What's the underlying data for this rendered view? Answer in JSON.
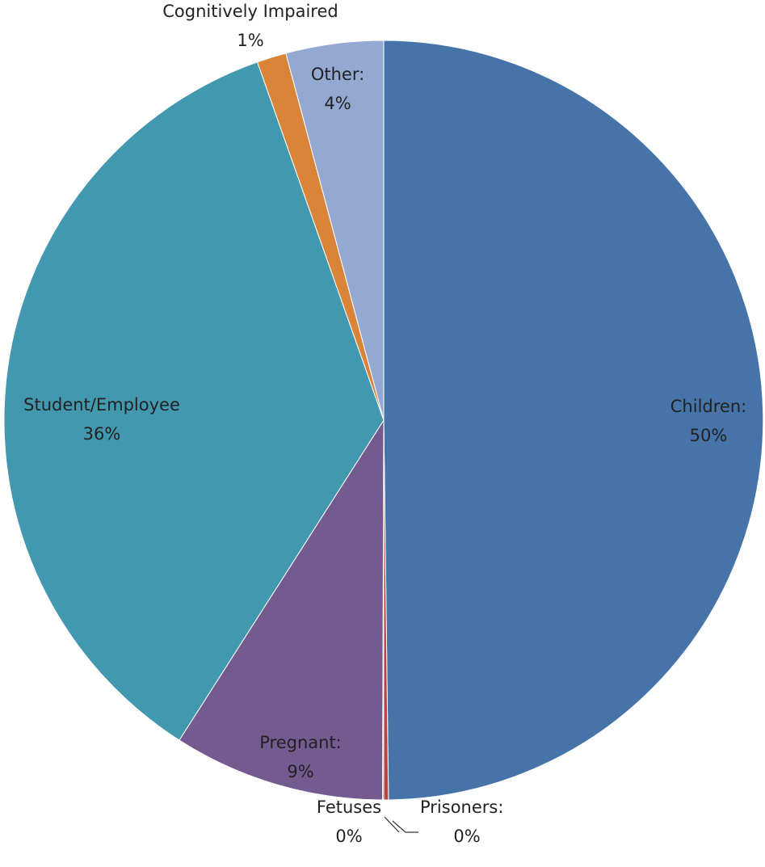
{
  "chart_data": {
    "type": "pie",
    "title": "",
    "start_angle_deg": 0,
    "direction": "clockwise",
    "slices": [
      {
        "label": "Children:",
        "value_label": "50%",
        "value": 49.8,
        "color": "#4674A8"
      },
      {
        "label": "Prisoners:",
        "value_label": "0%",
        "value": 0.2,
        "color": "#B84541"
      },
      {
        "label": "Fetuses",
        "value_label": "0%",
        "value": 0.05,
        "color": "#8AA54A"
      },
      {
        "label": "Pregnant:",
        "value_label": "9%",
        "value": 9.0,
        "color": "#735A8F"
      },
      {
        "label": "Student/Employee",
        "value_label": "36%",
        "value": 35.55,
        "color": "#4298AE"
      },
      {
        "label": "Cognitively Impaired",
        "value_label": "1%",
        "value": 1.25,
        "color": "#DA8439"
      },
      {
        "label": "Other:",
        "value_label": "4%",
        "value": 4.15,
        "color": "#94A9D1"
      }
    ]
  }
}
